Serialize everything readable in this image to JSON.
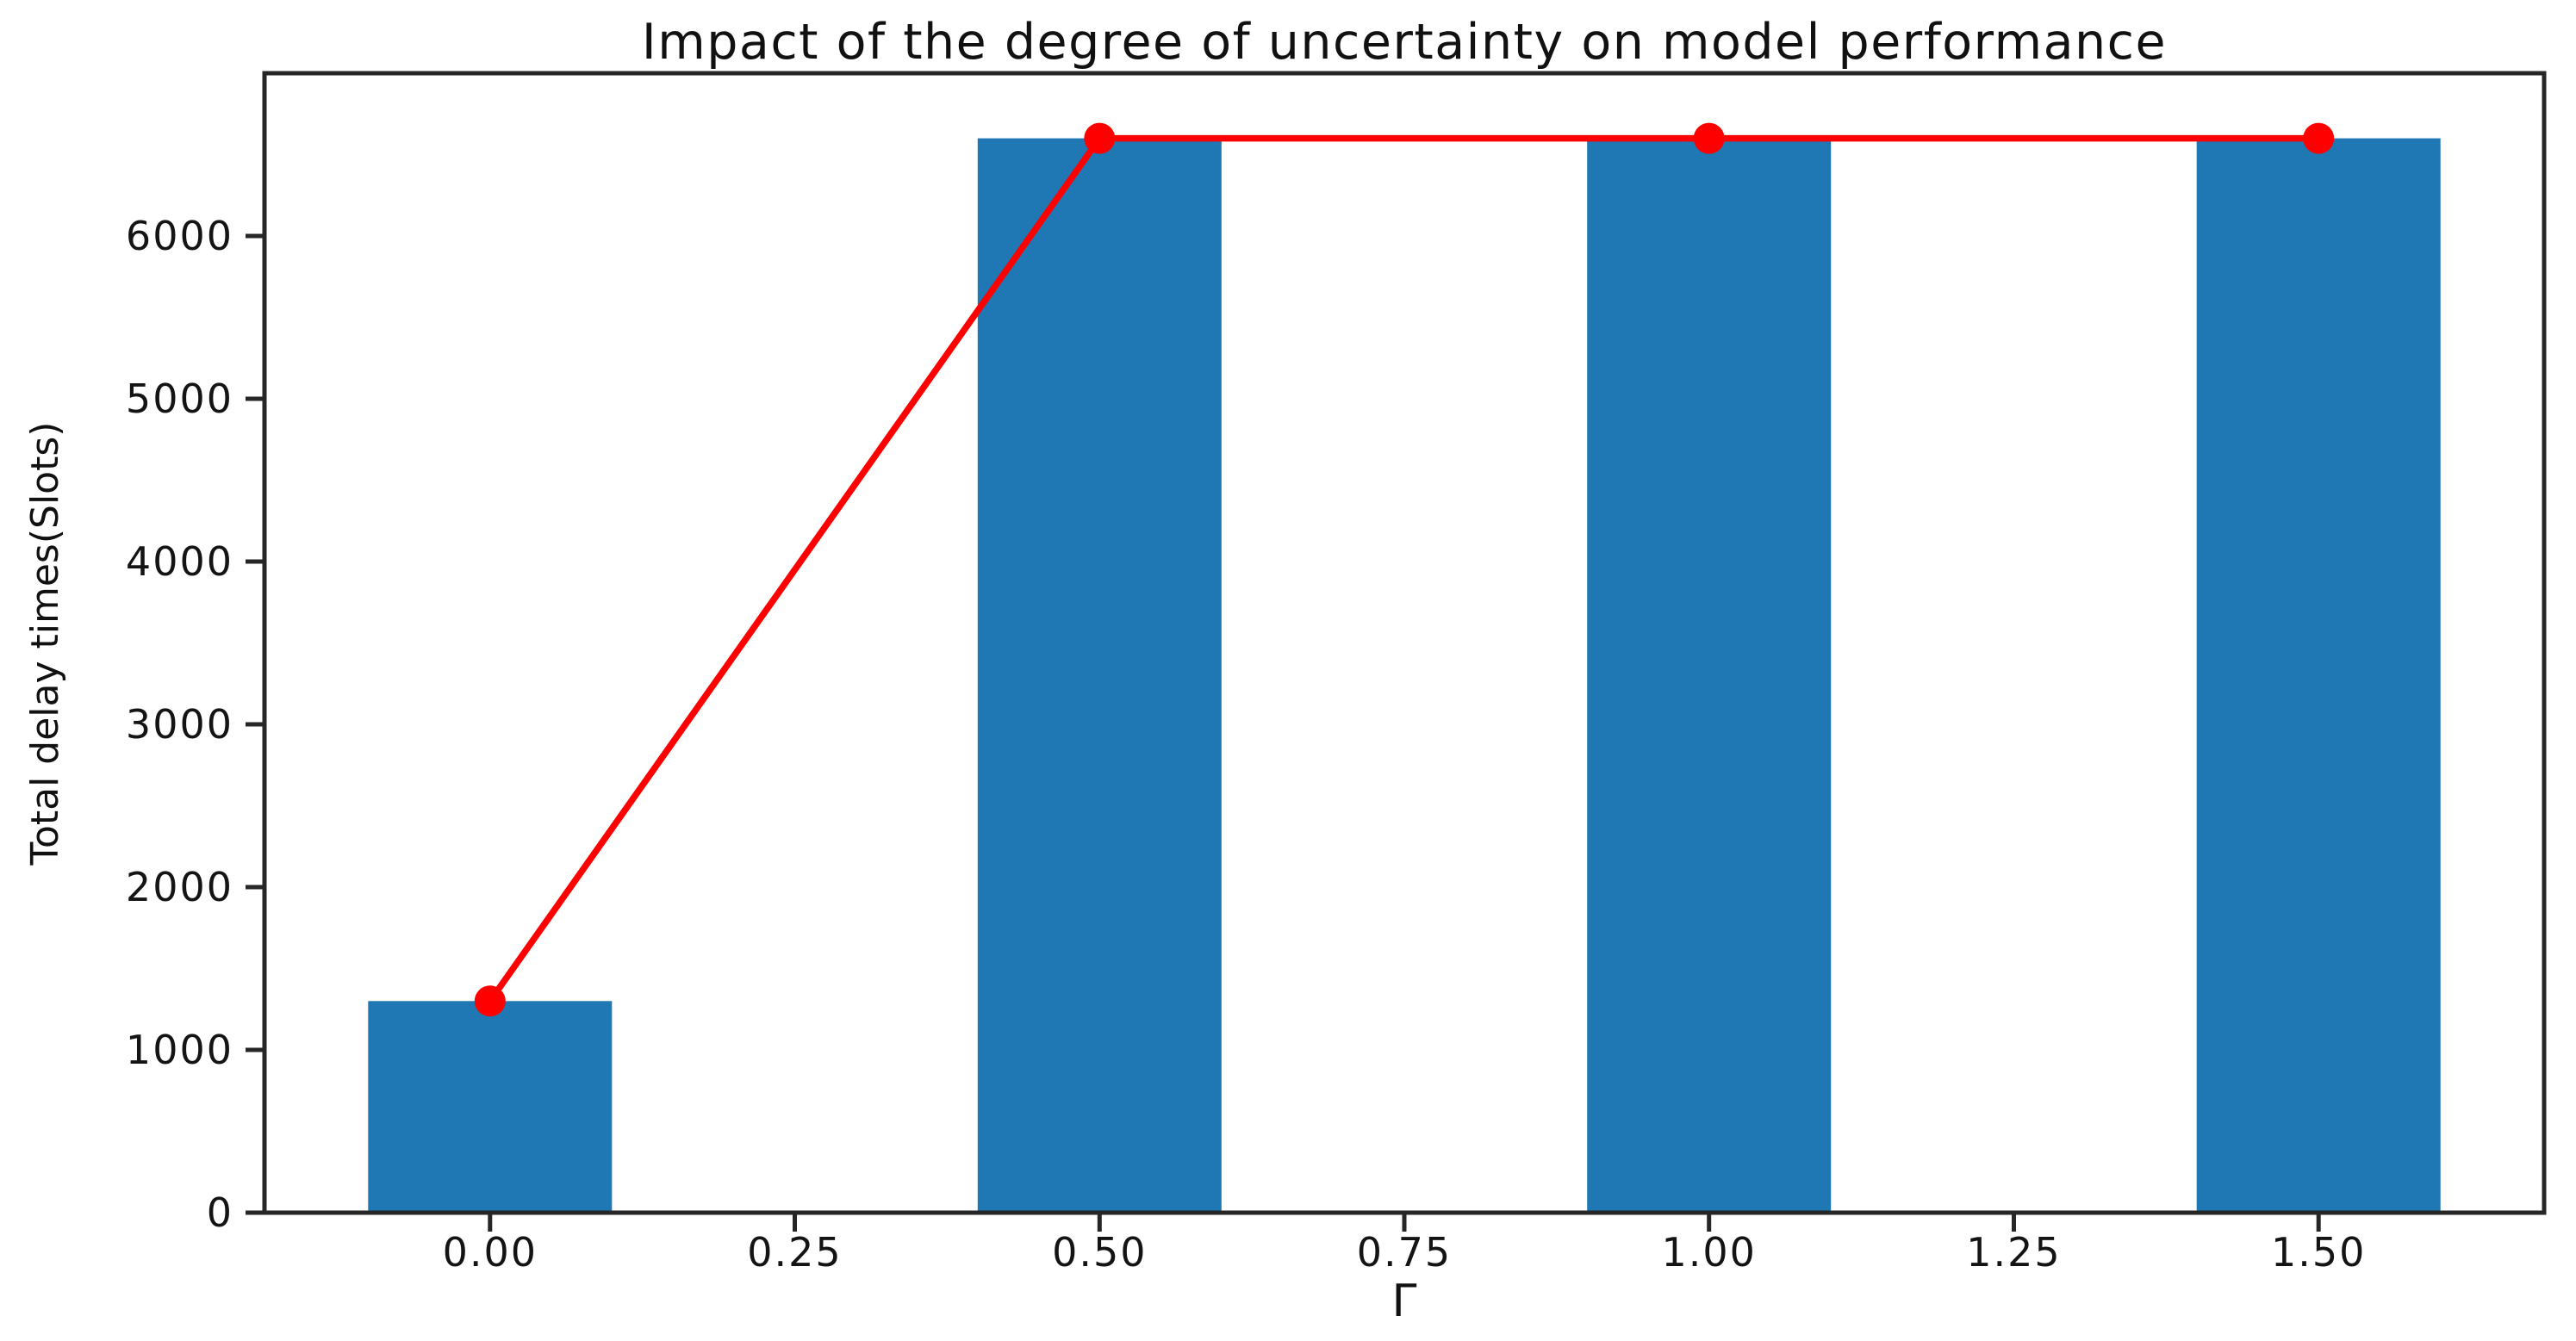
{
  "chart_data": {
    "type": "bar",
    "title": "Impact of the degree of uncertainty on model performance",
    "xlabel": "Γ",
    "ylabel": "Total delay times(Slots)",
    "x": [
      0.0,
      0.5,
      1.0,
      1.5
    ],
    "values": [
      1300,
      6600,
      6600,
      6600
    ],
    "bar_width": 0.2,
    "overlay_line": {
      "type": "line",
      "name": "total-delay-line",
      "x": [
        0.0,
        0.5,
        1.0,
        1.5
      ],
      "y": [
        1300,
        6600,
        6600,
        6600
      ],
      "marker": "o"
    },
    "x_ticks": {
      "values": [
        0.0,
        0.25,
        0.5,
        0.75,
        1.0,
        1.25,
        1.5
      ],
      "labels": [
        "0.00",
        "0.25",
        "0.50",
        "0.75",
        "1.00",
        "1.25",
        "1.50"
      ]
    },
    "y_ticks": {
      "values": [
        0,
        1000,
        2000,
        3000,
        4000,
        5000,
        6000
      ],
      "labels": [
        "0",
        "1000",
        "2000",
        "3000",
        "4000",
        "5000",
        "6000"
      ]
    },
    "xlim": [
      -0.185,
      1.685
    ],
    "ylim": [
      0,
      7000
    ],
    "grid": false,
    "legend": false,
    "colors": {
      "bar": "#1f77b4",
      "line": "#ff0000",
      "marker": "#ff0000",
      "spine": "#262626",
      "tick": "#262626",
      "text": "#111111",
      "background": "#ffffff"
    }
  }
}
